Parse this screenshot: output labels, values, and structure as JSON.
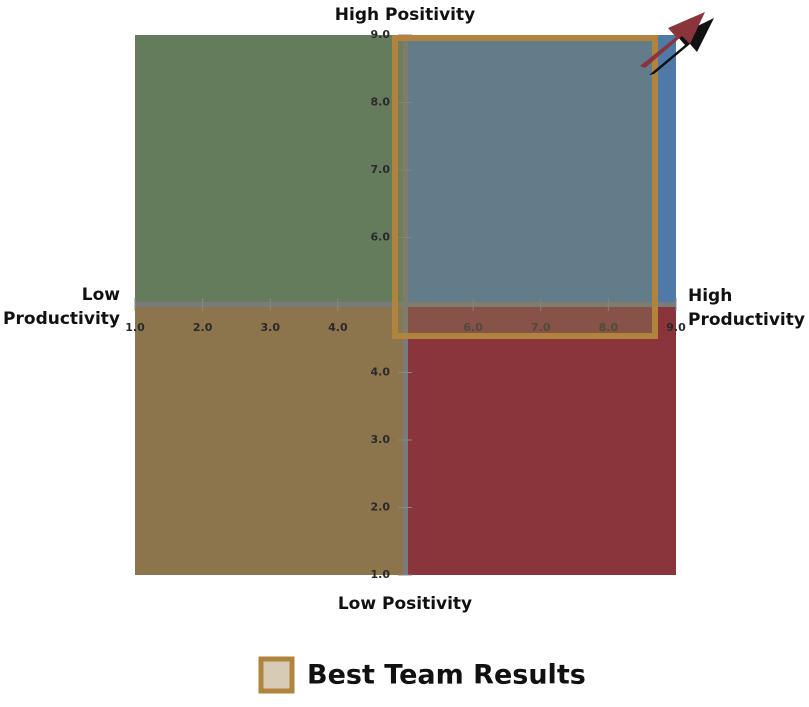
{
  "labels": {
    "top": "High Positivity",
    "bottom": "Low Positivity",
    "left": [
      "Low",
      "Productivity"
    ],
    "right": [
      "High",
      "Productivity"
    ]
  },
  "x_ticks": [
    "1.0",
    "2.0",
    "3.0",
    "4.0",
    "6.0",
    "7.0",
    "8.0",
    "9.0"
  ],
  "y_ticks": [
    "9.0",
    "8.0",
    "7.0",
    "6.0",
    "4.0",
    "3.0",
    "2.0",
    "1.0"
  ],
  "legend": {
    "label": "Best Team Results"
  }
}
